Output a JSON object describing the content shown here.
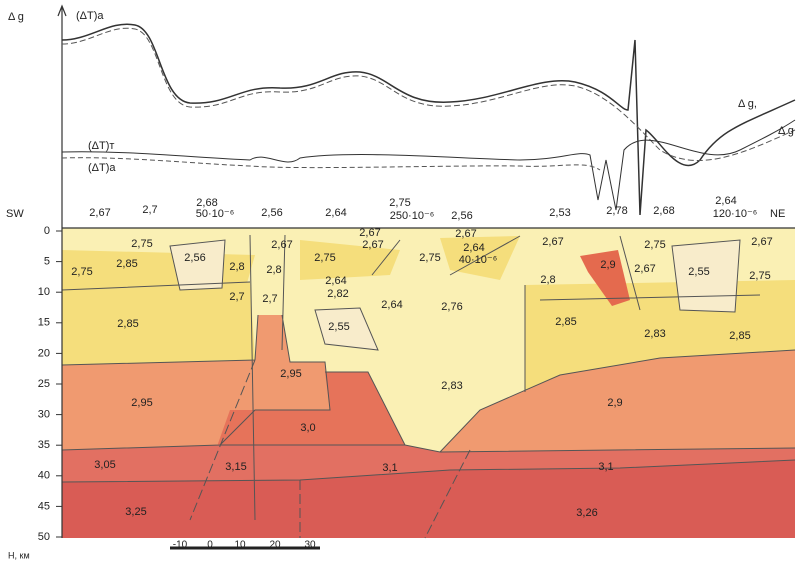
{
  "profile_labels": {
    "delta_g_left": "Δ g",
    "dT_a_top": "(ΔT)a",
    "delta_g_right": "Δ g,",
    "delta_g_right_cut": "Δ g",
    "dT_t": "(ΔT)т",
    "dT_a": "(ΔT)a"
  },
  "section": {
    "sw": "SW",
    "ne": "NE",
    "depth_axis": {
      "title": "H, км",
      "ticks": [
        "0",
        "5",
        "10",
        "15",
        "20",
        "25",
        "30",
        "35",
        "40",
        "45",
        "50"
      ]
    },
    "scale_bar": {
      "ticks": [
        "-10",
        "0",
        "10",
        "20",
        "30"
      ]
    },
    "susceptibility_labels": [
      "50·10⁻⁶",
      "250·10⁻⁶",
      "120·10⁻⁶",
      "40·10⁻⁶"
    ],
    "density_labels": [
      "2,67",
      "2,7",
      "2,68",
      "2,56",
      "2,64",
      "2,75",
      "2,56",
      "2,53",
      "2,78",
      "2,68",
      "2,64",
      "2,75",
      "2,85",
      "2,75",
      "2,56",
      "2,8",
      "2,67",
      "2,8",
      "2,7",
      "2,7",
      "2,67",
      "2,67",
      "2,75",
      "2,67",
      "2,64",
      "2,75",
      "2,64",
      "2,82",
      "2,64",
      "2,76",
      "2,55",
      "2,67",
      "2,9",
      "2,8",
      "2,75",
      "2,67",
      "2,55",
      "2,67",
      "2,75",
      "2,85",
      "2,85",
      "2,83",
      "2,85",
      "2,95",
      "2,83",
      "2,95",
      "2,9",
      "3,0",
      "3,05",
      "3,15",
      "3,1",
      "3,1",
      "3,25",
      "3,26"
    ]
  }
}
